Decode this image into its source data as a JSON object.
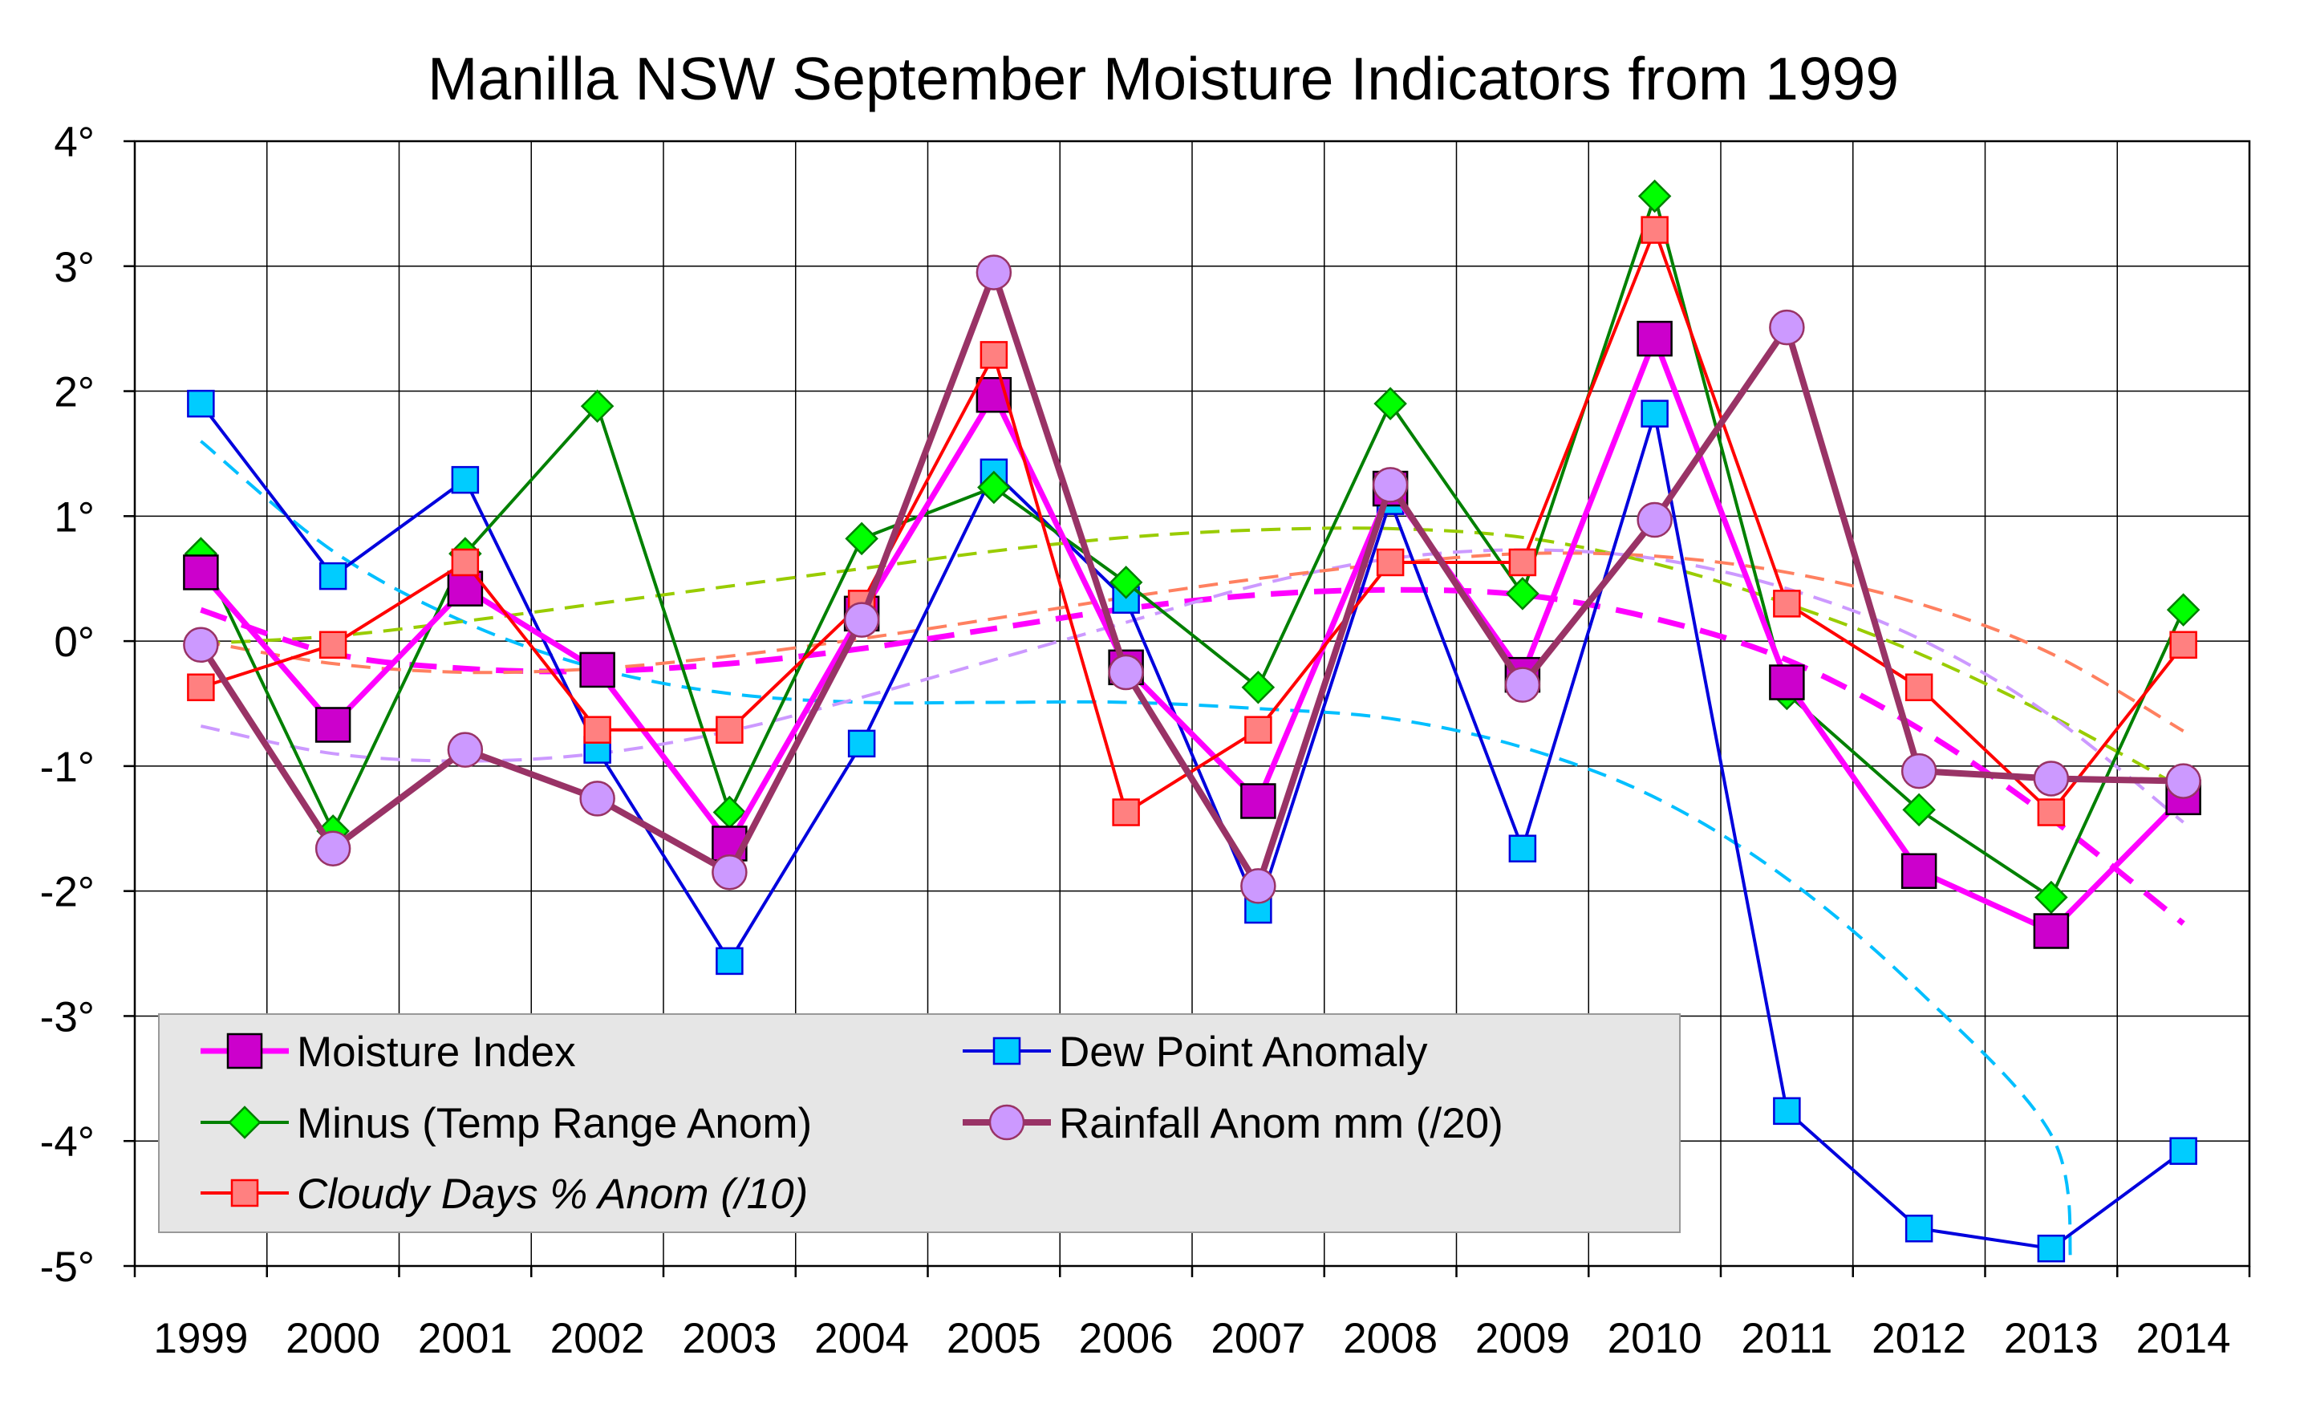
{
  "chart_data": {
    "type": "line",
    "title": "Manilla NSW September Moisture Indicators from 1999",
    "xlabel": "",
    "ylabel": "",
    "categories": [
      "1999",
      "2000",
      "2001",
      "2002",
      "2003",
      "2004",
      "2005",
      "2006",
      "2007",
      "2008",
      "2009",
      "2010",
      "2011",
      "2012",
      "2013",
      "2014"
    ],
    "yticks": [
      "4°",
      "3°",
      "2°",
      "1°",
      "0°",
      "-1°",
      "-2°",
      "-3°",
      "-4°",
      "-5°"
    ],
    "ylim": [
      -5,
      4
    ],
    "grid": true,
    "legend_placement": "bottom-left",
    "series": [
      {
        "name": "Moisture Index",
        "color": "#ff00ff",
        "marker_fill": "#cc00cc",
        "marker": "square-large",
        "values": [
          0.55,
          -0.67,
          0.42,
          -0.23,
          -1.62,
          0.22,
          1.97,
          -0.21,
          -1.28,
          1.22,
          -0.27,
          2.42,
          -0.33,
          -1.84,
          -2.32,
          -1.25
        ]
      },
      {
        "name": "Dew Point Anomaly",
        "color": "#0000dd",
        "marker_fill": "#00ccff",
        "marker": "square",
        "values": [
          1.9,
          0.52,
          1.29,
          -0.87,
          -2.56,
          -0.82,
          1.35,
          0.33,
          -2.15,
          1.12,
          -1.66,
          1.82,
          -3.76,
          -4.7,
          -4.86,
          -4.08
        ]
      },
      {
        "name": "Minus (Temp Range Anom)",
        "color": "#008000",
        "marker_fill": "#00ff00",
        "marker": "diamond",
        "values": [
          0.7,
          -1.52,
          0.7,
          1.88,
          -1.37,
          0.82,
          1.23,
          0.47,
          -0.37,
          1.9,
          0.38,
          3.56,
          -0.42,
          -1.35,
          -2.05,
          0.25
        ]
      },
      {
        "name": "Rainfall Anom mm (/20)",
        "color": "#993366",
        "marker_fill": "#cc99ff",
        "marker": "circle",
        "values": [
          -0.03,
          -1.66,
          -0.87,
          -1.26,
          -1.85,
          0.17,
          2.95,
          -0.25,
          -1.96,
          1.25,
          -0.35,
          0.97,
          2.51,
          -1.04,
          -1.1,
          -1.12
        ]
      },
      {
        "name": "Cloudy Days % Anom (/10)",
        "color": "#ff0000",
        "marker_fill": "#ff8080",
        "marker": "square",
        "values": [
          -0.37,
          -0.03,
          0.63,
          -0.71,
          -0.71,
          0.3,
          2.29,
          -1.37,
          -0.71,
          0.63,
          0.63,
          3.29,
          0.3,
          -0.37,
          -1.37,
          -0.03
        ]
      }
    ],
    "trendlines": [
      {
        "of": "Moisture Index",
        "color": "#ff00ff",
        "style": "long-dash",
        "width": "thick",
        "x": [
          0,
          1,
          2,
          3,
          4,
          5,
          6,
          7,
          8,
          9,
          10,
          11,
          12,
          13,
          14,
          15
        ],
        "values": [
          0.25,
          -0.1,
          -0.22,
          -0.24,
          -0.18,
          -0.06,
          0.1,
          0.26,
          0.37,
          0.41,
          0.37,
          0.18,
          -0.15,
          -0.7,
          -1.42,
          -2.26
        ]
      },
      {
        "of": "Dew Point Anomaly",
        "color": "#00bfff",
        "style": "dash",
        "width": "medium",
        "x": [
          0,
          1,
          2,
          3,
          4,
          5,
          6,
          7,
          8,
          9,
          10,
          11,
          12,
          13,
          14,
          14.15
        ],
        "values": [
          1.6,
          0.72,
          0.15,
          -0.22,
          -0.42,
          -0.49,
          -0.49,
          -0.49,
          -0.54,
          -0.62,
          -0.85,
          -1.25,
          -1.9,
          -2.8,
          -3.95,
          -5.0
        ]
      },
      {
        "of": "Minus (Temp Range Anom)",
        "color": "#99cc00",
        "style": "dash",
        "width": "medium",
        "x": [
          0,
          1,
          2,
          3,
          4,
          5,
          6,
          7,
          8,
          9,
          10,
          11,
          12,
          13,
          14,
          15
        ],
        "values": [
          -0.02,
          0.04,
          0.16,
          0.3,
          0.44,
          0.58,
          0.72,
          0.83,
          0.89,
          0.9,
          0.83,
          0.62,
          0.3,
          -0.1,
          -0.6,
          -1.18
        ]
      },
      {
        "of": "Rainfall Anom mm (/20)",
        "color": "#cc99ff",
        "style": "dash",
        "width": "medium",
        "x": [
          0,
          1,
          2,
          3,
          4,
          5,
          6,
          7,
          8,
          9,
          10,
          11,
          12,
          13,
          14,
          15
        ],
        "values": [
          -0.68,
          -0.9,
          -0.96,
          -0.9,
          -0.72,
          -0.45,
          -0.15,
          0.15,
          0.45,
          0.66,
          0.73,
          0.66,
          0.42,
          0.02,
          -0.6,
          -1.45
        ]
      },
      {
        "of": "Cloudy Days % Anom (/10)",
        "color": "#ff8060",
        "style": "dash",
        "width": "medium",
        "x": [
          0,
          1,
          2,
          3,
          4,
          5,
          6,
          7,
          8,
          9,
          10,
          11,
          12,
          13,
          14,
          15
        ],
        "values": [
          0.0,
          -0.18,
          -0.25,
          -0.22,
          -0.12,
          0.02,
          0.18,
          0.35,
          0.5,
          0.62,
          0.7,
          0.68,
          0.55,
          0.3,
          -0.1,
          -0.72
        ]
      }
    ]
  }
}
